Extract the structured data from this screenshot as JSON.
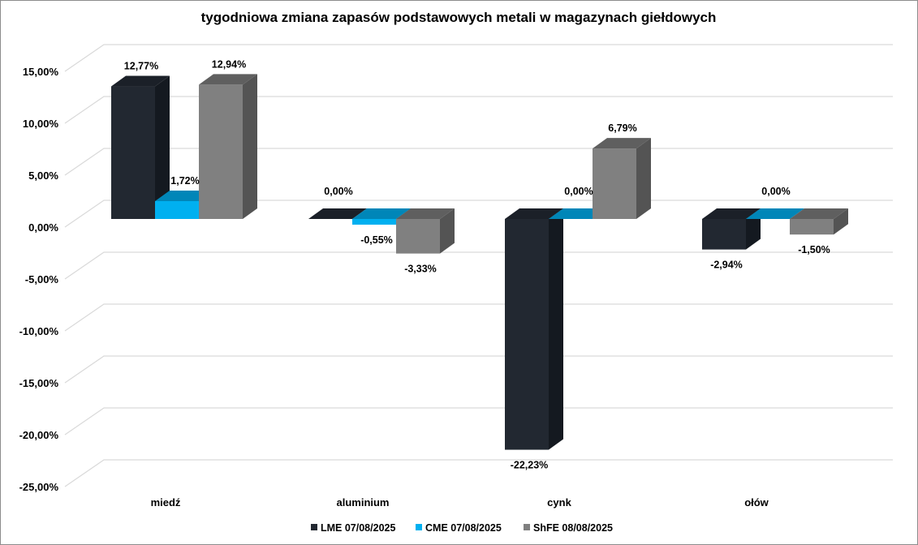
{
  "chart_data": {
    "type": "bar",
    "title": "tygodniowa zmiana zapasów podstawowych metali w magazynach giełdowych",
    "categories": [
      "miedź",
      "aluminium",
      "cynk",
      "ołów"
    ],
    "series": [
      {
        "name": "LME 07/08/2025",
        "values": [
          12.77,
          0.0,
          -22.23,
          -2.94
        ],
        "labels": [
          "12,77%",
          "0,00%",
          "-22,23%",
          "-2,94%"
        ],
        "color": "#222831",
        "side": "#141920",
        "top": "#1b2028"
      },
      {
        "name": "CME 07/08/2025",
        "values": [
          1.72,
          -0.55,
          0.0,
          0.0
        ],
        "labels": [
          "1,72%",
          "-0,55%",
          "0,00%",
          "0,00%"
        ],
        "color": "#00b0f0",
        "side": "#0086b8",
        "top": "#0086b8"
      },
      {
        "name": "ShFE 08/08/2025",
        "values": [
          12.94,
          -3.33,
          6.79,
          -1.5
        ],
        "labels": [
          "12,94%",
          "-3,33%",
          "6,79%",
          "-1,50%"
        ],
        "color": "#808080",
        "side": "#545454",
        "top": "#5f5f5f"
      }
    ],
    "yticks": [
      15,
      10,
      5,
      0,
      -5,
      -10,
      -15,
      -20,
      -25
    ],
    "ytick_labels": [
      "15,00%",
      "10,00%",
      "5,00%",
      "0,00%",
      "-5,00%",
      "-10,00%",
      "-15,00%",
      "-20,00%",
      "-25,00%"
    ],
    "ylim": [
      -25,
      15
    ],
    "xlabel": "",
    "ylabel": "",
    "grid": true,
    "legend": "bottom"
  }
}
